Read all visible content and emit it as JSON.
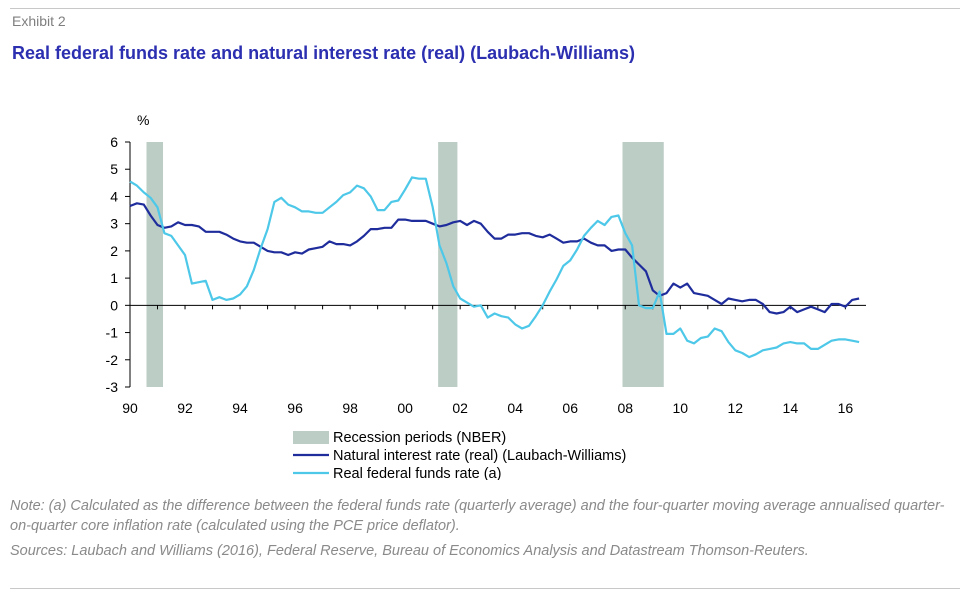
{
  "exhibit_label": "Exhibit 2",
  "title": "Real federal funds rate and natural interest rate (real) (Laubach-Williams)",
  "note": "Note: (a) Calculated as the difference between the federal funds rate (quarterly average) and the four-quarter moving average annualised quarter-on-quarter core inflation rate (calculated using the PCE price deflator).",
  "sources": "Sources: Laubach and Williams (2016), Federal Reserve, Bureau of Economics Analysis and Datastream Thomson-Reuters.",
  "colors": {
    "natural": "#1f2d9c",
    "funds": "#4dc8e8",
    "recession": "#bccdc6"
  },
  "chart_data": {
    "type": "line",
    "ylabel": "%",
    "ylim": [
      -3,
      6
    ],
    "y_ticks": [
      -3,
      -2,
      -1,
      0,
      1,
      2,
      3,
      4,
      5,
      6
    ],
    "xlim": [
      1990.0,
      2016.75
    ],
    "x_ticks": [
      {
        "value": 1990,
        "label": "90"
      },
      {
        "value": 1992,
        "label": "92"
      },
      {
        "value": 1994,
        "label": "94"
      },
      {
        "value": 1996,
        "label": "96"
      },
      {
        "value": 1998,
        "label": "98"
      },
      {
        "value": 2000,
        "label": "00"
      },
      {
        "value": 2002,
        "label": "02"
      },
      {
        "value": 2004,
        "label": "04"
      },
      {
        "value": 2006,
        "label": "06"
      },
      {
        "value": 2008,
        "label": "08"
      },
      {
        "value": 2010,
        "label": "10"
      },
      {
        "value": 2012,
        "label": "12"
      },
      {
        "value": 2014,
        "label": "14"
      },
      {
        "value": 2016,
        "label": "16"
      }
    ],
    "recessions": [
      {
        "start": 1990.6,
        "end": 1991.2
      },
      {
        "start": 2001.2,
        "end": 2001.9
      },
      {
        "start": 2007.9,
        "end": 2009.4
      }
    ],
    "legend": [
      {
        "key": "recession",
        "label": "Recession periods (NBER)"
      },
      {
        "key": "natural",
        "label": "Natural interest rate (real) (Laubach-Williams)"
      },
      {
        "key": "funds",
        "label": "Real federal funds rate (a)"
      }
    ],
    "series": [
      {
        "key": "natural",
        "name": "Natural interest rate (real) (Laubach-Williams)",
        "x": [
          1990.0,
          1990.25,
          1990.5,
          1990.75,
          1991.0,
          1991.25,
          1991.5,
          1991.75,
          1992.0,
          1992.25,
          1992.5,
          1992.75,
          1993.0,
          1993.25,
          1993.5,
          1993.75,
          1994.0,
          1994.25,
          1994.5,
          1994.75,
          1995.0,
          1995.25,
          1995.5,
          1995.75,
          1996.0,
          1996.25,
          1996.5,
          1996.75,
          1997.0,
          1997.25,
          1997.5,
          1997.75,
          1998.0,
          1998.25,
          1998.5,
          1998.75,
          1999.0,
          1999.25,
          1999.5,
          1999.75,
          2000.0,
          2000.25,
          2000.5,
          2000.75,
          2001.0,
          2001.25,
          2001.5,
          2001.75,
          2002.0,
          2002.25,
          2002.5,
          2002.75,
          2003.0,
          2003.25,
          2003.5,
          2003.75,
          2004.0,
          2004.25,
          2004.5,
          2004.75,
          2005.0,
          2005.25,
          2005.5,
          2005.75,
          2006.0,
          2006.25,
          2006.5,
          2006.75,
          2007.0,
          2007.25,
          2007.5,
          2007.75,
          2008.0,
          2008.25,
          2008.5,
          2008.75,
          2009.0,
          2009.25,
          2009.5,
          2009.75,
          2010.0,
          2010.25,
          2010.5,
          2010.75,
          2011.0,
          2011.25,
          2011.5,
          2011.75,
          2012.0,
          2012.25,
          2012.5,
          2012.75,
          2013.0,
          2013.25,
          2013.5,
          2013.75,
          2014.0,
          2014.25,
          2014.5,
          2014.75,
          2015.0,
          2015.25,
          2015.5,
          2015.75,
          2016.0,
          2016.25,
          2016.5
        ],
        "values": [
          3.65,
          3.75,
          3.7,
          3.3,
          2.95,
          2.85,
          2.9,
          3.05,
          2.95,
          2.95,
          2.9,
          2.7,
          2.7,
          2.7,
          2.6,
          2.45,
          2.35,
          2.3,
          2.3,
          2.15,
          2.0,
          1.95,
          1.95,
          1.85,
          1.95,
          1.9,
          2.05,
          2.1,
          2.15,
          2.35,
          2.25,
          2.25,
          2.2,
          2.35,
          2.55,
          2.8,
          2.8,
          2.85,
          2.85,
          3.15,
          3.15,
          3.1,
          3.1,
          3.1,
          3.0,
          2.9,
          2.95,
          3.05,
          3.1,
          2.95,
          3.1,
          3.0,
          2.7,
          2.45,
          2.45,
          2.6,
          2.6,
          2.65,
          2.65,
          2.55,
          2.5,
          2.6,
          2.45,
          2.3,
          2.35,
          2.35,
          2.45,
          2.3,
          2.2,
          2.2,
          2.0,
          2.05,
          2.05,
          1.75,
          1.5,
          1.25,
          0.55,
          0.35,
          0.45,
          0.8,
          0.65,
          0.8,
          0.45,
          0.4,
          0.35,
          0.2,
          0.05,
          0.25,
          0.2,
          0.15,
          0.2,
          0.2,
          0.05,
          -0.25,
          -0.3,
          -0.25,
          -0.05,
          -0.25,
          -0.15,
          -0.05,
          -0.15,
          -0.25,
          0.05,
          0.05,
          -0.05,
          0.2,
          0.25
        ]
      },
      {
        "key": "funds",
        "name": "Real federal funds rate (a)",
        "x": [
          1990.0,
          1990.25,
          1990.5,
          1990.75,
          1991.0,
          1991.25,
          1991.5,
          1991.75,
          1992.0,
          1992.25,
          1992.5,
          1992.75,
          1993.0,
          1993.25,
          1993.5,
          1993.75,
          1994.0,
          1994.25,
          1994.5,
          1994.75,
          1995.0,
          1995.25,
          1995.5,
          1995.75,
          1996.0,
          1996.25,
          1996.5,
          1996.75,
          1997.0,
          1997.25,
          1997.5,
          1997.75,
          1998.0,
          1998.25,
          1998.5,
          1998.75,
          1999.0,
          1999.25,
          1999.5,
          1999.75,
          2000.0,
          2000.25,
          2000.5,
          2000.75,
          2001.0,
          2001.25,
          2001.5,
          2001.75,
          2002.0,
          2002.25,
          2002.5,
          2002.75,
          2003.0,
          2003.25,
          2003.5,
          2003.75,
          2004.0,
          2004.25,
          2004.5,
          2004.75,
          2005.0,
          2005.25,
          2005.5,
          2005.75,
          2006.0,
          2006.25,
          2006.5,
          2006.75,
          2007.0,
          2007.25,
          2007.5,
          2007.75,
          2008.0,
          2008.25,
          2008.5,
          2008.75,
          2009.0,
          2009.25,
          2009.5,
          2009.75,
          2010.0,
          2010.25,
          2010.5,
          2010.75,
          2011.0,
          2011.25,
          2011.5,
          2011.75,
          2012.0,
          2012.25,
          2012.5,
          2012.75,
          2013.0,
          2013.25,
          2013.5,
          2013.75,
          2014.0,
          2014.25,
          2014.5,
          2014.75,
          2015.0,
          2015.25,
          2015.5,
          2015.75,
          2016.0,
          2016.25,
          2016.5
        ],
        "values": [
          4.55,
          4.4,
          4.15,
          3.95,
          3.6,
          2.65,
          2.55,
          2.2,
          1.85,
          0.8,
          0.85,
          0.9,
          0.2,
          0.3,
          0.2,
          0.25,
          0.4,
          0.7,
          1.3,
          2.1,
          2.8,
          3.8,
          3.95,
          3.7,
          3.6,
          3.45,
          3.45,
          3.4,
          3.4,
          3.6,
          3.8,
          4.05,
          4.15,
          4.4,
          4.3,
          4.0,
          3.5,
          3.5,
          3.8,
          3.85,
          4.25,
          4.7,
          4.65,
          4.65,
          3.6,
          2.2,
          1.55,
          0.7,
          0.25,
          0.1,
          -0.05,
          0.0,
          -0.45,
          -0.3,
          -0.4,
          -0.45,
          -0.7,
          -0.85,
          -0.75,
          -0.4,
          0.0,
          0.5,
          0.95,
          1.45,
          1.65,
          2.05,
          2.55,
          2.85,
          3.1,
          2.95,
          3.25,
          3.3,
          2.65,
          2.2,
          0.0,
          -0.1,
          -0.1,
          0.5,
          -1.05,
          -1.05,
          -0.85,
          -1.3,
          -1.4,
          -1.2,
          -1.15,
          -0.85,
          -0.95,
          -1.35,
          -1.65,
          -1.75,
          -1.9,
          -1.8,
          -1.65,
          -1.6,
          -1.55,
          -1.4,
          -1.35,
          -1.4,
          -1.4,
          -1.6,
          -1.6,
          -1.45,
          -1.3,
          -1.25,
          -1.25,
          -1.3,
          -1.35
        ]
      }
    ]
  }
}
